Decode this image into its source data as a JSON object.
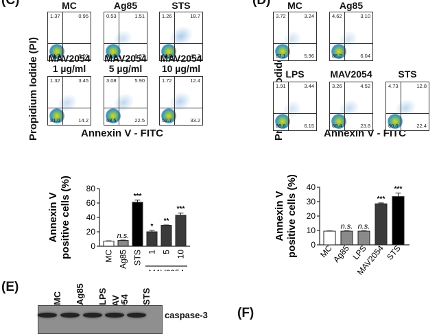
{
  "panels": {
    "c_label": "(C)",
    "d_label": "(D)",
    "e_label": "(E)",
    "f_label": "(F)"
  },
  "flow_left": {
    "y_axis_label": "Propidium Iodide (PI)",
    "x_axis_label": "Annexin V - FITC",
    "plots": [
      {
        "title": "MC",
        "ul": "1.37",
        "ur": "0.95",
        "ll": "91.7",
        "lr": "6.01"
      },
      {
        "title": "Ag85",
        "ul": "0.53",
        "ur": "1.51",
        "ll": "91.6",
        "lr": "6.37"
      },
      {
        "title": "STS",
        "ul": "1.26",
        "ur": "18.7",
        "ll": "34.8",
        "lr": "45.2"
      },
      {
        "title": "MAV2054\n1 µg/ml",
        "title1": "MAV2054",
        "title2": "1 µg/ml",
        "ul": "1.32",
        "ur": "3.45",
        "ll": "81.0",
        "lr": "14.2"
      },
      {
        "title": "MAV2054\n5 µg/ml",
        "title1": "MAV2054",
        "title2": "5 µg/ml",
        "ul": "3.08",
        "ur": "5.90",
        "ll": "68.5",
        "lr": "22.5"
      },
      {
        "title": "MAV2054\n10 µg/ml",
        "title1": "MAV2054",
        "title2": "10 µg/ml",
        "ul": "1.72",
        "ur": "12.4",
        "ll": "52.7",
        "lr": "33.2"
      }
    ]
  },
  "flow_right": {
    "y_axis_label": "Propidium Iodide (PI)",
    "x_axis_label": "Annexin V - FITC",
    "plots": [
      {
        "title": "MC",
        "ul": "3.72",
        "ur": "3.24",
        "ll": "87.1",
        "lr": "5.96"
      },
      {
        "title": "Ag85",
        "ul": "4.62",
        "ur": "3.10",
        "ll": "86.2",
        "lr": "6.04"
      },
      {
        "title": "LPS",
        "ul": "1.91",
        "ur": "3.44",
        "ll": "88.6",
        "lr": "6.15"
      },
      {
        "title": "MAV2054",
        "ul": "3.26",
        "ur": "4.52",
        "ll": "68.4",
        "lr": "23.8"
      },
      {
        "title": "STS",
        "ul": "4.73",
        "ur": "12.8",
        "ll": "60.0",
        "lr": "22.4"
      }
    ]
  },
  "chart_data": [
    {
      "type": "bar",
      "title": "",
      "ylabel": "Annexin V positive cells (%)",
      "xlabel": "",
      "ylim": [
        0,
        80
      ],
      "yticks": [
        "0",
        "20",
        "40",
        "60",
        "80"
      ],
      "categories": [
        "MC",
        "Ag85",
        "STS",
        "1",
        "5",
        "10"
      ],
      "values": [
        7,
        8,
        61,
        20,
        29,
        43
      ],
      "errors": [
        0.5,
        0.5,
        3,
        2,
        0.5,
        3
      ],
      "annotations": [
        "",
        "n.s.",
        "***",
        "*",
        "**",
        "***"
      ],
      "fills": [
        "#ffffff",
        "#8a8a8a",
        "#000000",
        "#3a3a3a",
        "#3a3a3a",
        "#3a3a3a"
      ],
      "group_label": "MAV2054",
      "group_categories": [
        "1",
        "5",
        "10"
      ]
    },
    {
      "type": "bar",
      "title": "",
      "ylabel": "Annexin V positive cells (%)",
      "xlabel": "",
      "ylim": [
        0,
        40
      ],
      "yticks": [
        "0",
        "10",
        "20",
        "30",
        "40"
      ],
      "categories": [
        "MC",
        "Ag85",
        "LPS",
        "MAV2054",
        "STS"
      ],
      "values": [
        9.5,
        9.5,
        9.5,
        28.5,
        33.5
      ],
      "errors": [
        0.2,
        0.3,
        0.3,
        0.6,
        2.5
      ],
      "annotations": [
        "",
        "n.s.",
        "n.s.",
        "***",
        "***"
      ],
      "fills": [
        "#ffffff",
        "#8a8a8a",
        "#8a8a8a",
        "#3a3a3a",
        "#000000"
      ]
    }
  ],
  "blot": {
    "lanes": [
      "MC",
      "Ag85",
      "LPS",
      "MAV\n2054",
      "STS"
    ],
    "lane_line1": [
      "MC",
      "Ag85",
      "LPS",
      "MAV",
      "STS"
    ],
    "lane_line2": [
      "",
      "",
      "",
      "2054",
      ""
    ],
    "band_label": "caspase-3"
  }
}
